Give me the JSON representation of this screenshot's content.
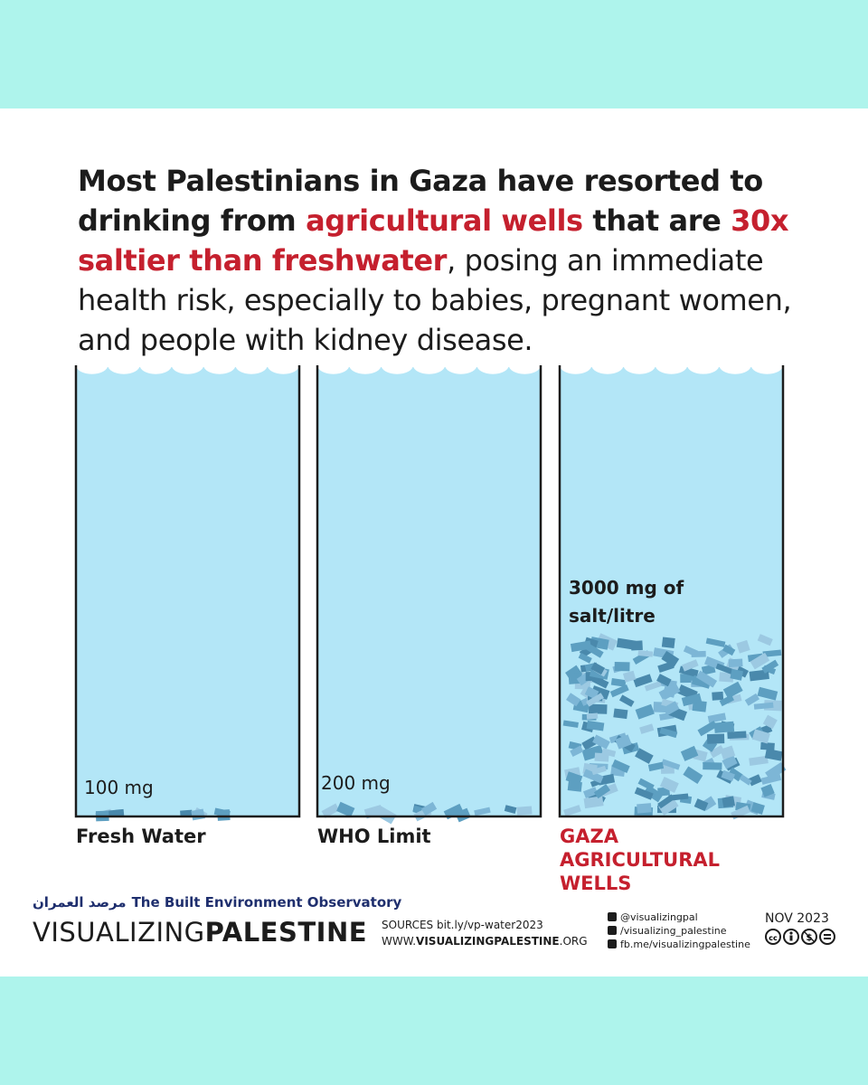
{
  "headline": {
    "part1": "Most Palestinians in Gaza have resorted to drinking from ",
    "highlight1": "agricultural wells",
    "part2": " that are ",
    "highlight2": "30x saltier than freshwater",
    "part3": ", posing an immediate health risk, especially to babies, pregnant women, and people with kidney disease."
  },
  "chart_data": {
    "type": "bar",
    "categories": [
      "Fresh Water",
      "WHO Limit",
      "GAZA AGRICULTURAL WELLS"
    ],
    "values": [
      100,
      200,
      3000
    ],
    "value_labels": [
      "100 mg",
      "200 mg",
      "3000 mg of salt/litre"
    ],
    "unit": "mg of salt/litre",
    "ylim": [
      0,
      7500
    ],
    "title": "",
    "xlabel": "",
    "ylabel": "",
    "colors": {
      "water": "#b3e6f7",
      "salt": "#5d9fc1",
      "highlight": "#c5202e",
      "outline": "#1c1c1c"
    }
  },
  "footer": {
    "observatory_arabic": "مرصد العمران",
    "observatory_english": "The Built Environment Observatory",
    "brand_thin": "VISUALIZING",
    "brand_bold": "PALESTINE",
    "sources_prefix": "SOURCES",
    "sources_url": "bit.ly/vp-water2023",
    "website_prefix": "WWW.",
    "website_bold": "VISUALIZINGPALESTINE",
    "website_suffix": ".ORG",
    "social": [
      "@visualizingpal",
      "/visualizing_palestine",
      "fb.me/visualizingpalestine"
    ],
    "social_icons": [
      "twitter-icon",
      "instagram-icon",
      "facebook-icon"
    ],
    "date": "NOV 2023",
    "license_icons": [
      "cc-icon",
      "by-icon",
      "nc-icon",
      "nd-icon"
    ]
  }
}
